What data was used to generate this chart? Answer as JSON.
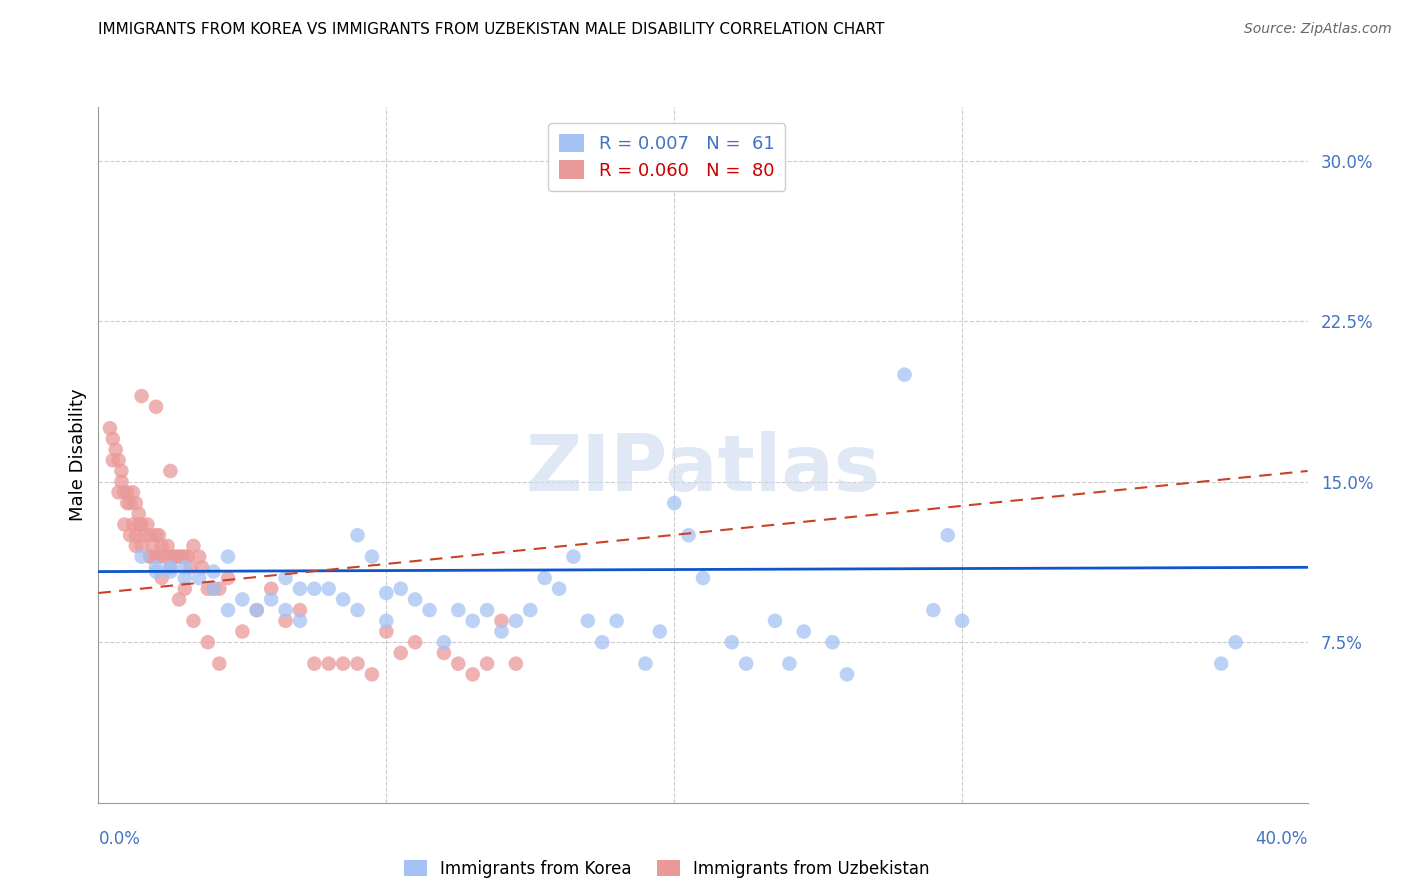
{
  "title": "IMMIGRANTS FROM KOREA VS IMMIGRANTS FROM UZBEKISTAN MALE DISABILITY CORRELATION CHART",
  "source": "Source: ZipAtlas.com",
  "ylabel": "Male Disability",
  "ytick_values": [
    0.075,
    0.15,
    0.225,
    0.3
  ],
  "ytick_labels": [
    "7.5%",
    "15.0%",
    "22.5%",
    "30.0%"
  ],
  "xlim": [
    0.0,
    0.42
  ],
  "ylim": [
    0.0,
    0.325
  ],
  "legend1_label": "R = 0.007   N =  61",
  "legend2_label": "R = 0.060   N =  80",
  "korea_face_color": "#a4c2f4",
  "uzbek_face_color": "#ea9999",
  "korea_line_color": "#1155cc",
  "uzbek_line_color": "#cc4125",
  "watermark_text": "ZIPatlas",
  "korea_line_y0": 0.108,
  "korea_line_y1": 0.11,
  "uzbek_line_y0": 0.098,
  "uzbek_line_y1": 0.155,
  "korea_x": [
    0.015,
    0.02,
    0.02,
    0.025,
    0.025,
    0.03,
    0.03,
    0.035,
    0.04,
    0.04,
    0.045,
    0.045,
    0.05,
    0.055,
    0.06,
    0.065,
    0.065,
    0.07,
    0.07,
    0.075,
    0.08,
    0.085,
    0.09,
    0.09,
    0.095,
    0.1,
    0.1,
    0.105,
    0.11,
    0.115,
    0.12,
    0.125,
    0.13,
    0.135,
    0.14,
    0.145,
    0.15,
    0.155,
    0.16,
    0.165,
    0.17,
    0.175,
    0.18,
    0.19,
    0.195,
    0.2,
    0.205,
    0.21,
    0.22,
    0.225,
    0.235,
    0.24,
    0.245,
    0.255,
    0.26,
    0.28,
    0.29,
    0.295,
    0.3,
    0.39,
    0.395
  ],
  "korea_y": [
    0.115,
    0.11,
    0.108,
    0.11,
    0.108,
    0.105,
    0.11,
    0.105,
    0.1,
    0.108,
    0.115,
    0.09,
    0.095,
    0.09,
    0.095,
    0.09,
    0.105,
    0.1,
    0.085,
    0.1,
    0.1,
    0.095,
    0.09,
    0.125,
    0.115,
    0.085,
    0.098,
    0.1,
    0.095,
    0.09,
    0.075,
    0.09,
    0.085,
    0.09,
    0.08,
    0.085,
    0.09,
    0.105,
    0.1,
    0.115,
    0.085,
    0.075,
    0.085,
    0.065,
    0.08,
    0.14,
    0.125,
    0.105,
    0.075,
    0.065,
    0.085,
    0.065,
    0.08,
    0.075,
    0.06,
    0.2,
    0.09,
    0.125,
    0.085,
    0.065,
    0.075
  ],
  "uzbek_x": [
    0.004,
    0.005,
    0.006,
    0.007,
    0.008,
    0.008,
    0.009,
    0.01,
    0.01,
    0.011,
    0.012,
    0.012,
    0.013,
    0.013,
    0.014,
    0.014,
    0.015,
    0.015,
    0.016,
    0.017,
    0.018,
    0.018,
    0.019,
    0.02,
    0.02,
    0.021,
    0.021,
    0.022,
    0.023,
    0.024,
    0.025,
    0.025,
    0.026,
    0.027,
    0.028,
    0.029,
    0.03,
    0.03,
    0.031,
    0.032,
    0.033,
    0.035,
    0.036,
    0.038,
    0.04,
    0.042,
    0.045,
    0.05,
    0.055,
    0.06,
    0.065,
    0.07,
    0.075,
    0.08,
    0.085,
    0.09,
    0.095,
    0.1,
    0.105,
    0.11,
    0.12,
    0.125,
    0.13,
    0.135,
    0.14,
    0.145,
    0.015,
    0.02,
    0.025,
    0.005,
    0.007,
    0.009,
    0.011,
    0.013,
    0.018,
    0.022,
    0.028,
    0.033,
    0.038,
    0.042
  ],
  "uzbek_y": [
    0.175,
    0.17,
    0.165,
    0.16,
    0.155,
    0.15,
    0.145,
    0.14,
    0.145,
    0.14,
    0.145,
    0.13,
    0.125,
    0.14,
    0.135,
    0.13,
    0.13,
    0.12,
    0.125,
    0.13,
    0.125,
    0.115,
    0.12,
    0.115,
    0.125,
    0.115,
    0.125,
    0.12,
    0.115,
    0.12,
    0.11,
    0.115,
    0.115,
    0.115,
    0.115,
    0.115,
    0.115,
    0.1,
    0.115,
    0.11,
    0.12,
    0.115,
    0.11,
    0.1,
    0.1,
    0.1,
    0.105,
    0.08,
    0.09,
    0.1,
    0.085,
    0.09,
    0.065,
    0.065,
    0.065,
    0.065,
    0.06,
    0.08,
    0.07,
    0.075,
    0.07,
    0.065,
    0.06,
    0.065,
    0.085,
    0.065,
    0.19,
    0.185,
    0.155,
    0.16,
    0.145,
    0.13,
    0.125,
    0.12,
    0.115,
    0.105,
    0.095,
    0.085,
    0.075,
    0.065
  ]
}
